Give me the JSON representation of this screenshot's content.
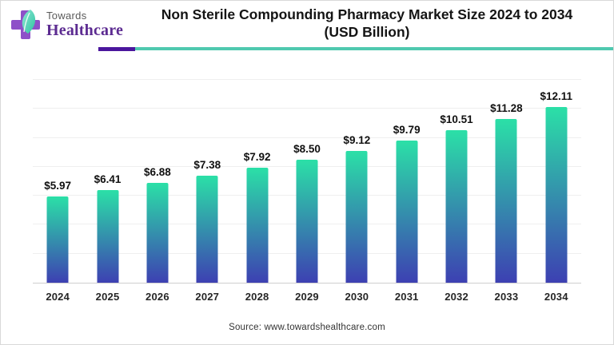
{
  "brand": {
    "towards": "Towards",
    "healthcare": "Healthcare"
  },
  "header": {
    "title_line1": "Non Sterile Compounding Pharmacy Market Size 2024 to 2034",
    "title_line2": "(USD Billion)"
  },
  "chart_data": {
    "type": "bar",
    "title": "Non Sterile Compounding Pharmacy Market Size 2024 to 2034 (USD Billion)",
    "categories": [
      "2024",
      "2025",
      "2026",
      "2027",
      "2028",
      "2029",
      "2030",
      "2031",
      "2032",
      "2033",
      "2034"
    ],
    "values": [
      5.97,
      6.41,
      6.88,
      7.38,
      7.92,
      8.5,
      9.12,
      9.79,
      10.51,
      11.28,
      12.11
    ],
    "value_labels": [
      "$5.97",
      "$6.41",
      "$6.88",
      "$7.38",
      "$7.92",
      "$8.50",
      "$9.12",
      "$9.79",
      "$10.51",
      "$11.28",
      "$12.11"
    ],
    "xlabel": "",
    "ylabel": "",
    "ylim": [
      0,
      14
    ],
    "gridline_step": 2,
    "grid": "horizontal light gray, no y-axis tick labels",
    "legend": "none",
    "bar_gradient_top": "#2be0a7",
    "bar_gradient_bottom": "#3d40b2"
  },
  "footer": {
    "source": "Source: www.towardshealthcare.com"
  },
  "colors": {
    "rule_purple": "#4b169d",
    "rule_teal": "#4fc9af",
    "gridline": "#efefef",
    "axis_line": "#cfcfcf",
    "logo_purple": "#8e50c8",
    "logo_leaf": "#3ec9a8",
    "healthcare_text": "#5c2b91"
  }
}
